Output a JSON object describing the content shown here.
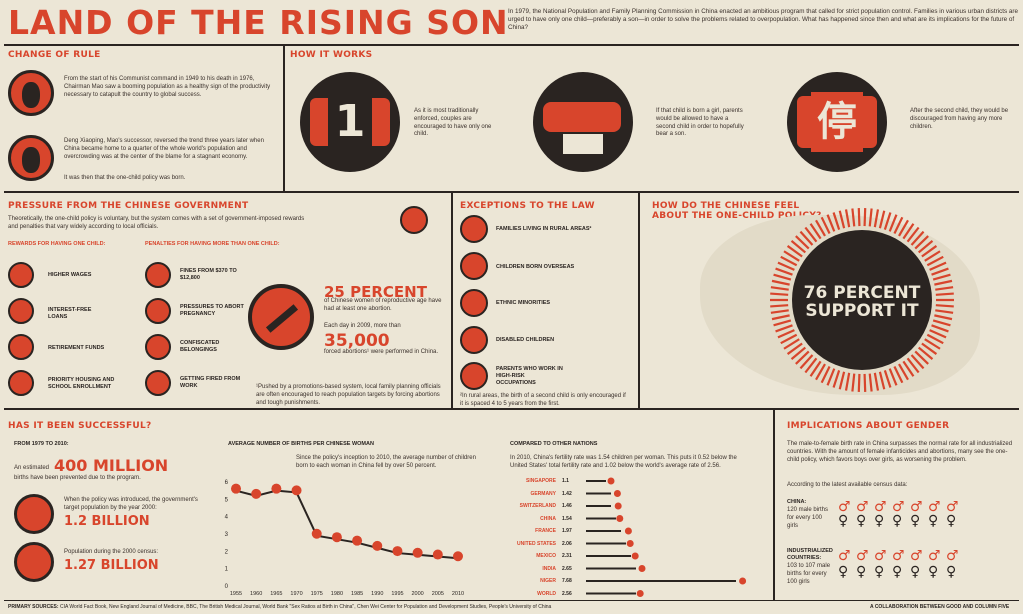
{
  "title": "LAND OF THE RISING SON",
  "intro": "In 1979, the National Population and Family Planning Commission in China enacted an ambitious program that called for strict population control. Families in various urban districts are urged to have only one child—preferably a son—in order to solve the problems related to overpopulation. What has happened since then and what are its implications for the future of China?",
  "change_of_rule": {
    "header": "CHANGE OF RULE",
    "mao": "From the start of his Communist command in 1949 to his death in 1976, Chairman Mao saw a booming population as a healthy sign of the productivity necessary to catapult the country to global success.",
    "deng": "Deng Xiaoping, Mao's successor, reversed the trend three years later when China became home to a quarter of the whole world's population and overcrowding was at the center of the blame for a stagnant economy.",
    "born": "It was then that the one-child policy was born."
  },
  "how_it_works": {
    "header": "HOW IT WORKS",
    "step1_glyph": "1",
    "step1": "As it is most traditionally enforced, couples are encouraged to have only one child.",
    "step2": "If that child is born a girl, parents would be allowed to have a second child in order to hopefully bear a son.",
    "step3_glyph": "停",
    "step3": "After the second child, they would be discouraged from having any more children."
  },
  "pressure": {
    "header": "PRESSURE FROM THE CHINESE GOVERNMENT",
    "text": "Theoretically, the one-child policy is voluntary, but the system comes with a set of government-imposed rewards and penalties that vary widely according to local officials.",
    "rewards_header": "REWARDS FOR HAVING ONE CHILD:",
    "penalties_header": "PENALTIES FOR HAVING MORE THAN ONE CHILD:",
    "rewards": [
      "HIGHER WAGES",
      "INTEREST-FREE LOANS",
      "RETIREMENT FUNDS",
      "PRIORITY HOUSING AND SCHOOL ENROLLMENT"
    ],
    "penalties": [
      "FINES FROM $370 TO $12,800",
      "PRESSURES TO ABORT PREGNANCY",
      "CONFISCATED BELONGINGS",
      "GETTING FIRED FROM WORK"
    ],
    "pct_big": "25 PERCENT",
    "pct_text": "of Chinese women of reproductive age have had at least one abortion.",
    "each_day": "Each day in 2009, more than",
    "abortions_big": "35,000",
    "abortions_text": "forced abortions¹ were performed in China.",
    "footnote": "¹Pushed by a promotions-based system, local family planning officials are often encouraged to reach population targets by forcing abortions and tough punishments."
  },
  "exceptions": {
    "header": "EXCEPTIONS TO THE LAW",
    "items": [
      "FAMILIES LIVING IN RURAL AREAS²",
      "CHILDREN BORN OVERSEAS",
      "ETHNIC MINORITIES",
      "DISABLED CHILDREN",
      "PARENTS WHO WORK IN HIGH-RISK OCCUPATIONS"
    ],
    "footnote": "²In rural areas, the birth of a second child is only encouraged if it is spaced 4 to 5 years from the first."
  },
  "feel": {
    "header_line1": "HOW DO THE CHINESE FEEL",
    "header_line2": "ABOUT THE ONE-CHILD POLICY?",
    "big_line1": "76 PERCENT",
    "big_line2": "SUPPORT IT"
  },
  "success": {
    "header": "HAS IT BEEN SUCCESSFUL?",
    "period": "FROM 1979 TO 2010:",
    "estimated": "An estimated",
    "million_big": "400 MILLION",
    "million_text": "births have been prevented due to the program.",
    "target_text": "When the policy was introduced, the government's target population by the year 2000:",
    "target_big": "1.2 BILLION",
    "census_text": "Population during the 2000 census:",
    "census_big": "1.27 BILLION"
  },
  "births": {
    "header": "AVERAGE NUMBER OF BIRTHS PER CHINESE WOMAN",
    "text": "Since the policy's inception to 2010, the average number of children born to each woman in China fell by over 50 percent."
  },
  "chart_data": {
    "type": "line",
    "title": "AVERAGE NUMBER OF BIRTHS PER CHINESE WOMAN",
    "x": [
      1955,
      1960,
      1965,
      1970,
      1975,
      1980,
      1985,
      1990,
      1995,
      2000,
      2005,
      2010
    ],
    "y": [
      5.5,
      5.2,
      5.5,
      5.4,
      2.9,
      2.7,
      2.5,
      2.2,
      1.9,
      1.8,
      1.7,
      1.6
    ],
    "xticks": [
      "1955",
      "1960",
      "1965",
      "1970",
      "1975",
      "1980",
      "1985",
      "1990",
      "1995",
      "2000",
      "2005",
      "2010"
    ],
    "yticks": [
      "0",
      "1",
      "2",
      "3",
      "4",
      "5",
      "6"
    ],
    "ylim": [
      0,
      6
    ],
    "grid": false
  },
  "compare": {
    "header": "COMPARED TO OTHER NATIONS",
    "text": "In 2010, China's fertility rate was 1.54 children per woman. This puts it 0.52 below the United States' total fertility rate and 1.02 below the world's average rate of 2.56.",
    "nations": [
      {
        "name": "SINGAPORE",
        "value": "1.1"
      },
      {
        "name": "GERMANY",
        "value": "1.42"
      },
      {
        "name": "SWITZERLAND",
        "value": "1.46"
      },
      {
        "name": "CHINA",
        "value": "1.54"
      },
      {
        "name": "FRANCE",
        "value": "1.97"
      },
      {
        "name": "UNITED STATES",
        "value": "2.06"
      },
      {
        "name": "MEXICO",
        "value": "2.31"
      },
      {
        "name": "INDIA",
        "value": "2.65"
      },
      {
        "name": "NIGER",
        "value": "7.68"
      },
      {
        "name": "WORLD",
        "value": "2.56"
      }
    ]
  },
  "gender": {
    "header": "IMPLICATIONS ABOUT GENDER",
    "text": "The male-to-female birth rate in China surpasses the normal rate for all industrialized countries. With the amount of female infanticides and abortions, many see the one-child policy, which favors boys over girls, as worsening the problem.",
    "census": "According to the latest available census data:",
    "china_label": "CHINA:",
    "china_text": "120 male births for every 100 girls",
    "ind_label": "INDUSTRIALIZED COUNTRIES:",
    "ind_text": "103 to 107 male births for every 100 girls"
  },
  "footer": {
    "sources_label": "PRIMARY SOURCES:",
    "sources": "CIA World Fact Book, New England Journal of Medicine, BBC, The British Medical Journal, World Bank \"Sex Ratios at Birth in China\", Chen Wei Center for Population and Development Studies, People's University of China",
    "credit": "A COLLABORATION BETWEEN GOOD AND COLUMN FIVE"
  },
  "colors": {
    "accent": "#d8452c",
    "dark": "#2a2421",
    "background": "#ece6d6"
  }
}
